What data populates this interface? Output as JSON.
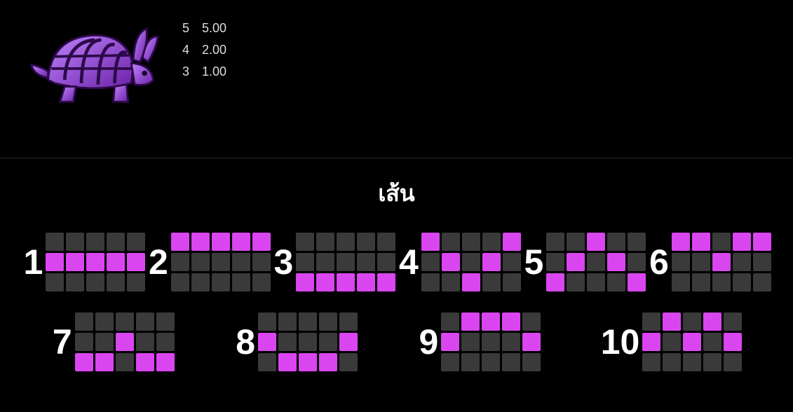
{
  "colors": {
    "background": "#000000",
    "text": "#ffffff",
    "cell_empty": "#3a3a3a",
    "cell_filled": "#d946ef",
    "divider": "#2a2a2a",
    "symbol_primary": "#9333ea",
    "symbol_light": "#c084fc",
    "symbol_dark": "#6b21a8"
  },
  "paytable": {
    "symbol_name": "armadillo-rabbit",
    "rows": [
      {
        "count": "5",
        "value": "5.00"
      },
      {
        "count": "4",
        "value": "2.00"
      },
      {
        "count": "3",
        "value": "1.00"
      }
    ]
  },
  "lines_section": {
    "title": "เส้น",
    "grid_cols": 5,
    "grid_rows": 3,
    "paylines": [
      {
        "num": "1",
        "cells": [
          [
            1,
            0
          ],
          [
            1,
            1
          ],
          [
            1,
            2
          ],
          [
            1,
            3
          ],
          [
            1,
            4
          ]
        ]
      },
      {
        "num": "2",
        "cells": [
          [
            0,
            0
          ],
          [
            0,
            1
          ],
          [
            0,
            2
          ],
          [
            0,
            3
          ],
          [
            0,
            4
          ]
        ]
      },
      {
        "num": "3",
        "cells": [
          [
            2,
            0
          ],
          [
            2,
            1
          ],
          [
            2,
            2
          ],
          [
            2,
            3
          ],
          [
            2,
            4
          ]
        ]
      },
      {
        "num": "4",
        "cells": [
          [
            0,
            0
          ],
          [
            1,
            1
          ],
          [
            2,
            2
          ],
          [
            1,
            3
          ],
          [
            0,
            4
          ]
        ]
      },
      {
        "num": "5",
        "cells": [
          [
            2,
            0
          ],
          [
            1,
            1
          ],
          [
            0,
            2
          ],
          [
            1,
            3
          ],
          [
            2,
            4
          ]
        ]
      },
      {
        "num": "6",
        "cells": [
          [
            0,
            0
          ],
          [
            0,
            1
          ],
          [
            1,
            2
          ],
          [
            0,
            3
          ],
          [
            0,
            4
          ]
        ]
      },
      {
        "num": "7",
        "cells": [
          [
            2,
            0
          ],
          [
            2,
            1
          ],
          [
            1,
            2
          ],
          [
            2,
            3
          ],
          [
            2,
            4
          ]
        ]
      },
      {
        "num": "8",
        "cells": [
          [
            1,
            0
          ],
          [
            2,
            1
          ],
          [
            2,
            2
          ],
          [
            2,
            3
          ],
          [
            1,
            4
          ]
        ]
      },
      {
        "num": "9",
        "cells": [
          [
            1,
            0
          ],
          [
            0,
            1
          ],
          [
            0,
            2
          ],
          [
            0,
            3
          ],
          [
            1,
            4
          ]
        ]
      },
      {
        "num": "10",
        "cells": [
          [
            1,
            0
          ],
          [
            0,
            1
          ],
          [
            1,
            2
          ],
          [
            0,
            3
          ],
          [
            1,
            4
          ]
        ]
      }
    ]
  }
}
